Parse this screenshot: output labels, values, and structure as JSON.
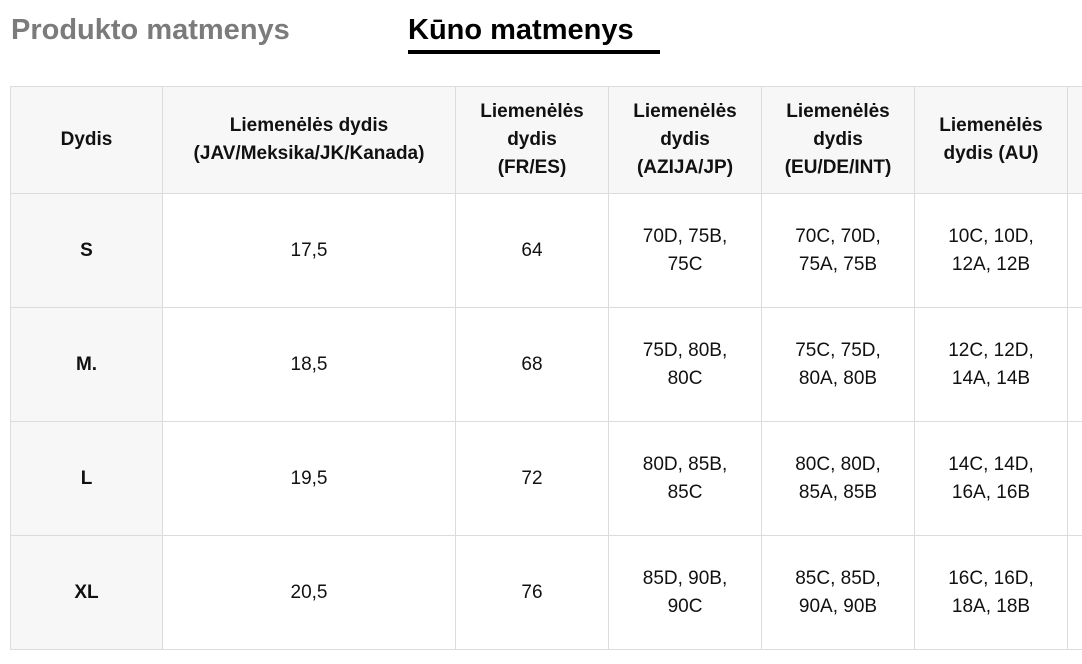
{
  "tabs": [
    {
      "label": "Produkto matmenys",
      "active": false
    },
    {
      "label": "Kūno matmenys",
      "active": true
    }
  ],
  "colors": {
    "inactive_tab": "#7b7b7b",
    "active_tab": "#000000",
    "header_bg": "#f7f7f7",
    "border": "#dcdcdc"
  },
  "table": {
    "headers": [
      "Dydis",
      "Liemenėlės dydis\n(JAV/Meksika/JK/Kanada)",
      "Liemenėlės\ndydis\n(FR/ES)",
      "Liemenėlės\ndydis\n(AZIJA/JP)",
      "Liemenėlės\ndydis\n(EU/DE/INT)",
      "Liemenėlės\ndydis (AU)",
      ""
    ],
    "rows": [
      {
        "size": "S",
        "us": "17,5",
        "fr": "64",
        "asia": "70D, 75B,\n75C",
        "eu": "70C, 70D,\n75A, 75B",
        "au": "10C, 10D,\n12A, 12B",
        "extra": ""
      },
      {
        "size": "M.",
        "us": "18,5",
        "fr": "68",
        "asia": "75D, 80B,\n80C",
        "eu": "75C, 75D,\n80A, 80B",
        "au": "12C, 12D,\n14A, 14B",
        "extra": ""
      },
      {
        "size": "L",
        "us": "19,5",
        "fr": "72",
        "asia": "80D, 85B,\n85C",
        "eu": "80C, 80D,\n85A, 85B",
        "au": "14C, 14D,\n16A, 16B",
        "extra": ""
      },
      {
        "size": "XL",
        "us": "20,5",
        "fr": "76",
        "asia": "85D, 90B,\n90C",
        "eu": "85C, 85D,\n90A, 90B",
        "au": "16C, 16D,\n18A, 18B",
        "extra": ""
      }
    ]
  }
}
